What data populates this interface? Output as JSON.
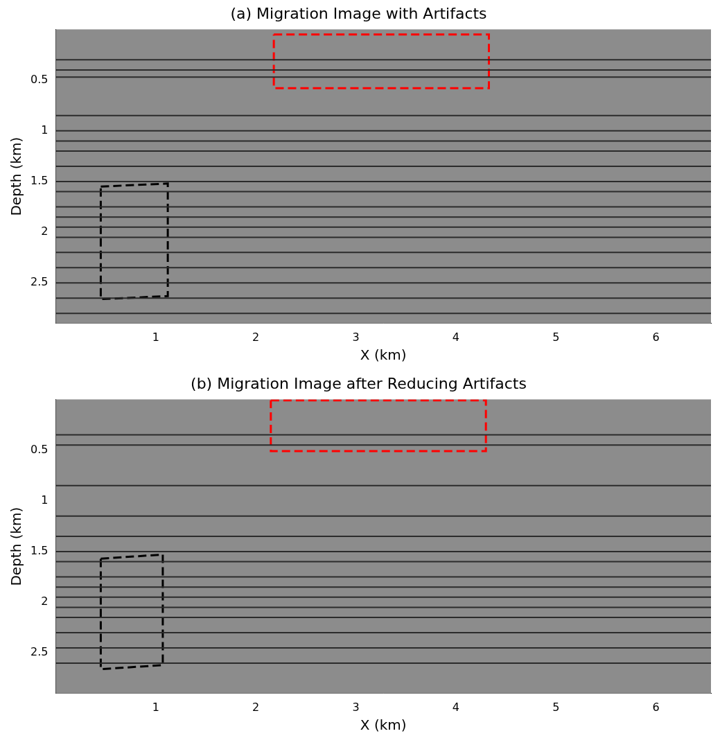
{
  "chart_data": [
    {
      "type": "scatter",
      "title": "(a) Migration Image with Artifacts",
      "x_label": "X (km)",
      "y_label": "Depth (km)",
      "xlim": [
        0,
        6.55
      ],
      "ylim": [
        2.9,
        0
      ],
      "xticks": [
        1,
        2,
        3,
        4,
        5,
        6
      ],
      "yticks": [
        0.5,
        1,
        1.5,
        2,
        2.5
      ],
      "grid": false,
      "reflectors": {
        "color": "#2b2b2b",
        "depths": [
          0.3,
          0.4,
          0.47,
          0.85,
          1.0,
          1.1,
          1.2,
          1.35,
          1.5,
          1.6,
          1.75,
          1.85,
          1.95,
          2.05,
          2.2,
          2.35,
          2.5,
          2.65,
          2.8
        ]
      },
      "series": [
        {
          "color": "#ff0000",
          "line_style": "dashed",
          "values": [
            {
              "x": 2.18,
              "y": 0.05
            },
            {
              "x": 4.33,
              "y": 0.05
            },
            {
              "x": 4.33,
              "y": 0.58
            },
            {
              "x": 2.18,
              "y": 0.58
            },
            {
              "x": 2.18,
              "y": 0.05
            }
          ]
        },
        {
          "color": "#000000",
          "line_style": "dashed",
          "values": [
            {
              "x": 0.45,
              "y": 1.55
            },
            {
              "x": 1.12,
              "y": 1.52
            },
            {
              "x": 1.12,
              "y": 2.63
            },
            {
              "x": 0.45,
              "y": 2.66
            },
            {
              "x": 0.45,
              "y": 1.55
            }
          ]
        }
      ]
    },
    {
      "type": "scatter",
      "title": "(b) Migration Image after Reducing Artifacts",
      "x_label": "X (km)",
      "y_label": "Depth (km)",
      "xlim": [
        0,
        6.55
      ],
      "ylim": [
        2.9,
        0
      ],
      "xticks": [
        1,
        2,
        3,
        4,
        5,
        6
      ],
      "yticks": [
        0.5,
        1,
        1.5,
        2,
        2.5
      ],
      "grid": false,
      "reflectors": {
        "color": "#2b2b2b",
        "depths": [
          0.35,
          0.45,
          0.85,
          1.15,
          1.35,
          1.5,
          1.6,
          1.75,
          1.85,
          1.95,
          2.05,
          2.15,
          2.3,
          2.45,
          2.6
        ]
      },
      "series": [
        {
          "color": "#ff0000",
          "line_style": "dashed",
          "values": [
            {
              "x": 2.15,
              "y": 0.01
            },
            {
              "x": 4.3,
              "y": 0.01
            },
            {
              "x": 4.3,
              "y": 0.51
            },
            {
              "x": 2.15,
              "y": 0.51
            },
            {
              "x": 2.15,
              "y": 0.01
            }
          ]
        },
        {
          "color": "#000000",
          "line_style": "dashed",
          "values": [
            {
              "x": 0.45,
              "y": 1.57
            },
            {
              "x": 1.07,
              "y": 1.53
            },
            {
              "x": 1.07,
              "y": 2.62
            },
            {
              "x": 0.45,
              "y": 2.66
            },
            {
              "x": 0.45,
              "y": 1.57
            }
          ]
        }
      ]
    }
  ]
}
